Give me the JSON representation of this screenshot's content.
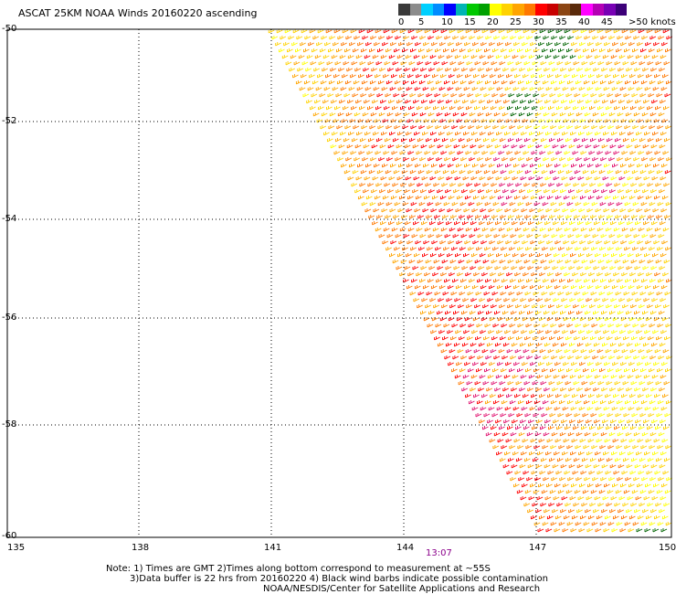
{
  "title": "ASCAT 25KM NOAA Winds 20160220 ascending",
  "colorbar": {
    "segments": [
      "#3a3a3a",
      "#8c8c8c",
      "#00d0ff",
      "#008cff",
      "#0000ff",
      "#00b4b4",
      "#00c800",
      "#00a000",
      "#ffff00",
      "#ffd200",
      "#ffa500",
      "#ff7800",
      "#ff0000",
      "#c80000",
      "#8b4513",
      "#5a2a0a",
      "#ff00ff",
      "#b400b4",
      "#7800b4",
      "#3c0078"
    ],
    "labels": [
      "0",
      "5",
      "10",
      "15",
      "20",
      "25",
      "30",
      "35",
      "40",
      "45",
      ">50 knots"
    ]
  },
  "axes": {
    "y_labels": [
      "-50",
      "-52",
      "-54",
      "-56",
      "-58",
      "-60"
    ],
    "x_labels": [
      "135",
      "138",
      "141",
      "144",
      "147",
      "150"
    ]
  },
  "time_label": "13:07",
  "notes": [
    "Note: 1) Times are GMT 2)Times along bottom correspond to measurement at ~55S",
    "3)Data buffer is 22 hrs from 20160220 4) Black wind barbs indicate possible contamination",
    "NOAA/NESDIS/Center for Satellite Applications and Research"
  ]
}
